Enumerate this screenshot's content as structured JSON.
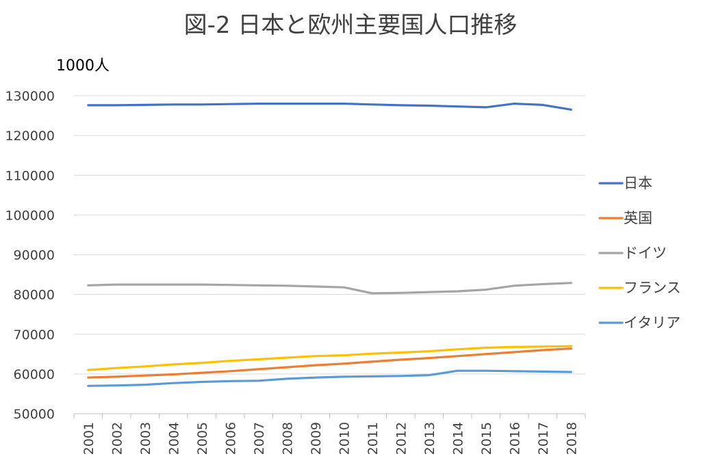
{
  "chart_data": {
    "type": "line",
    "title": "図-2 日本と欧州主要国人口推移",
    "unit_label": "1000人",
    "xlabel": "",
    "ylabel": "",
    "ylim": [
      50000,
      130000
    ],
    "y_ticks": [
      "130000",
      "120000",
      "110000",
      "100000",
      "90000",
      "80000",
      "70000",
      "60000",
      "50000"
    ],
    "y_tick_values": [
      130000,
      120000,
      110000,
      100000,
      90000,
      80000,
      70000,
      60000,
      50000
    ],
    "categories": [
      "2001",
      "2002",
      "2003",
      "2004",
      "2005",
      "2006",
      "2007",
      "2008",
      "2009",
      "2010",
      "2011",
      "2012",
      "2013",
      "2014",
      "2015",
      "2016",
      "2017",
      "2018"
    ],
    "grid": true,
    "legend_position": "right",
    "series": [
      {
        "name": "日本",
        "color": "#4472c4",
        "values": [
          127600,
          127600,
          127700,
          127800,
          127800,
          127900,
          128000,
          128000,
          128000,
          128000,
          127800,
          127600,
          127500,
          127300,
          127100,
          128000,
          127700,
          126500
        ]
      },
      {
        "name": "英国",
        "color": "#ed7d31",
        "values": [
          59100,
          59300,
          59600,
          59900,
          60300,
          60700,
          61200,
          61700,
          62200,
          62600,
          63100,
          63600,
          64000,
          64500,
          65000,
          65500,
          66000,
          66400
        ]
      },
      {
        "name": "ドイツ",
        "color": "#a5a5a5",
        "values": [
          82300,
          82500,
          82500,
          82500,
          82500,
          82400,
          82300,
          82200,
          82000,
          81800,
          80300,
          80400,
          80600,
          80800,
          81200,
          82200,
          82600,
          82900
        ]
      },
      {
        "name": "フランス",
        "color": "#ffc000",
        "values": [
          61000,
          61500,
          61900,
          62400,
          62800,
          63300,
          63700,
          64100,
          64500,
          64700,
          65100,
          65400,
          65700,
          66200,
          66600,
          66800,
          66900,
          67000
        ]
      },
      {
        "name": "イタリア",
        "color": "#5b9bd5",
        "values": [
          57000,
          57100,
          57300,
          57700,
          58000,
          58200,
          58300,
          58800,
          59100,
          59300,
          59400,
          59500,
          59700,
          60800,
          60800,
          60700,
          60600,
          60500
        ]
      }
    ]
  }
}
